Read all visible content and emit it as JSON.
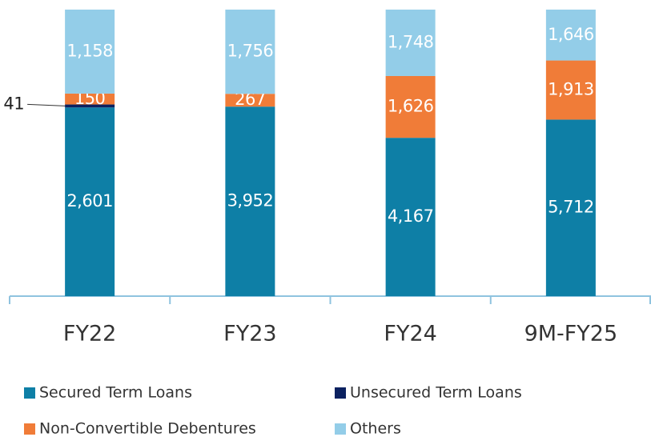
{
  "chart_data": {
    "type": "bar",
    "stacked": "percent",
    "categories": [
      "FY22",
      "FY23",
      "FY24",
      "9M-FY25"
    ],
    "series": [
      {
        "name": "Secured Term Loans",
        "color": "#0e7fa6",
        "values": [
          2601,
          3952,
          4167,
          5712
        ],
        "value_labels": [
          "2,601",
          "3,952",
          "4,167",
          "5,712"
        ]
      },
      {
        "name": "Unsecured Term Loans",
        "color": "#0b2160",
        "values": [
          41,
          null,
          null,
          null
        ],
        "value_labels": [
          "41",
          null,
          null,
          null
        ]
      },
      {
        "name": "Non-Convertible Debentures",
        "color": "#f07c38",
        "values": [
          150,
          267,
          1626,
          1913
        ],
        "value_labels": [
          "150",
          "267",
          "1,626",
          "1,913"
        ]
      },
      {
        "name": "Others",
        "color": "#93cde8",
        "values": [
          1158,
          1756,
          1748,
          1646
        ],
        "value_labels": [
          "1,158",
          "1,756",
          "1,748",
          "1,646"
        ]
      }
    ]
  }
}
